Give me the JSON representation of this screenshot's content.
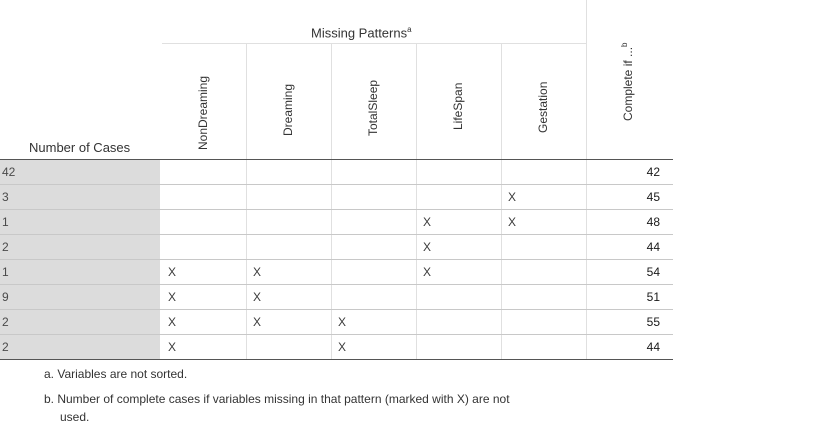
{
  "table": {
    "group_title": "Missing Patterns",
    "group_title_sup": "a",
    "row_header": "Number of Cases",
    "last_column": "Complete if ...",
    "last_column_sup": "b",
    "columns": [
      "NonDreaming",
      "Dreaming",
      "TotalSleep",
      "LifeSpan",
      "Gestation"
    ],
    "rows": [
      {
        "cases": "42",
        "marks": [
          "",
          "",
          "",
          "",
          ""
        ],
        "complete": "42"
      },
      {
        "cases": "3",
        "marks": [
          "",
          "",
          "",
          "",
          "X"
        ],
        "complete": "45"
      },
      {
        "cases": "1",
        "marks": [
          "",
          "",
          "",
          "X",
          "X"
        ],
        "complete": "48"
      },
      {
        "cases": "2",
        "marks": [
          "",
          "",
          "",
          "X",
          ""
        ],
        "complete": "44"
      },
      {
        "cases": "1",
        "marks": [
          "X",
          "X",
          "",
          "X",
          ""
        ],
        "complete": "54"
      },
      {
        "cases": "9",
        "marks": [
          "X",
          "X",
          "",
          "",
          ""
        ],
        "complete": "51"
      },
      {
        "cases": "2",
        "marks": [
          "X",
          "X",
          "X",
          "",
          ""
        ],
        "complete": "55"
      },
      {
        "cases": "2",
        "marks": [
          "X",
          "",
          "X",
          "",
          ""
        ],
        "complete": "44"
      }
    ]
  },
  "footnotes": {
    "a": "a. Variables are not sorted.",
    "b_line1": "b. Number of complete cases if variables missing in that pattern (marked with X) are not",
    "b_line2": "used."
  }
}
